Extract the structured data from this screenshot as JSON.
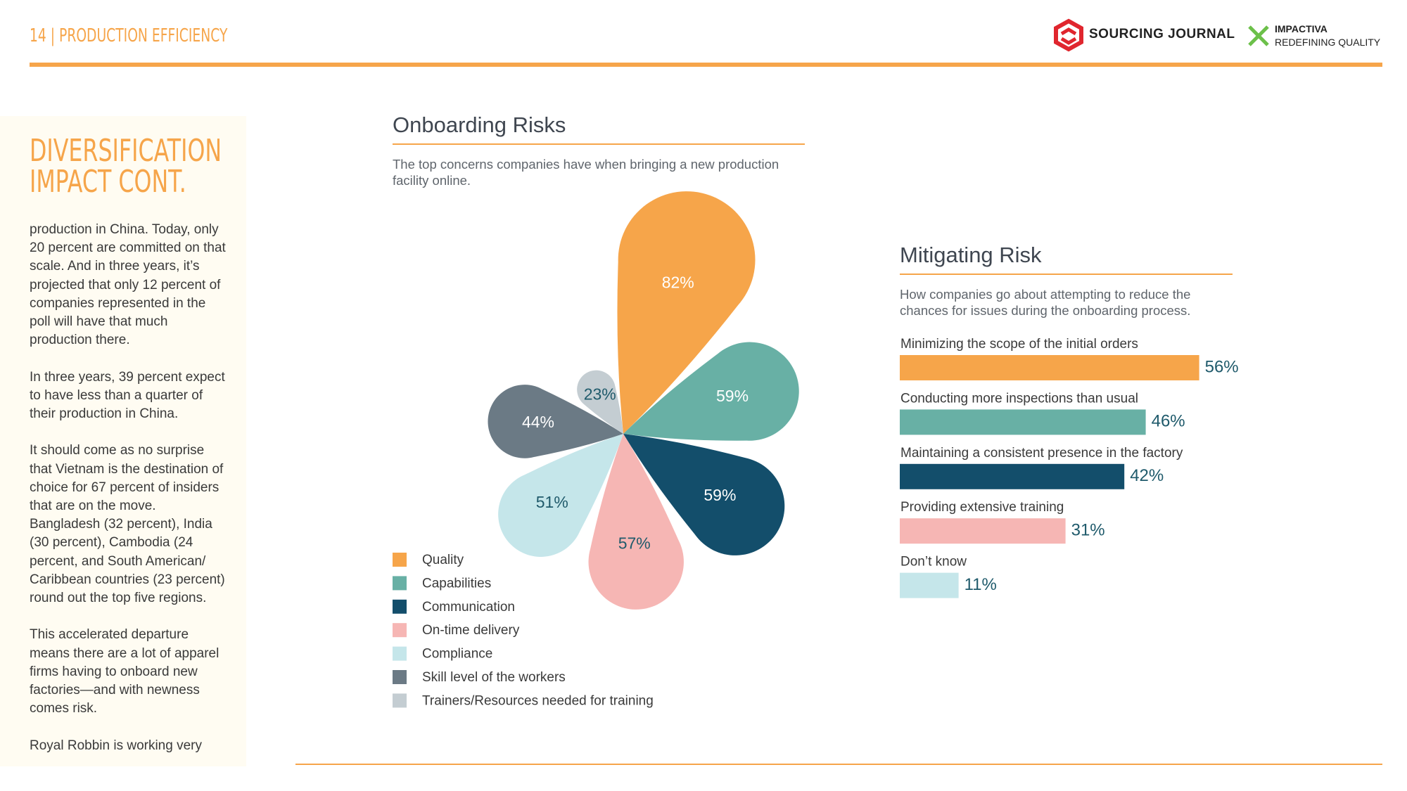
{
  "header": {
    "section": "14 | PRODUCTION EFFICIENCY",
    "brands": [
      "SOURCING JOURNAL",
      "IMPACTIVA",
      "REDEFINING QUALITY"
    ]
  },
  "sidebar": {
    "heading": [
      "DIVERSIFICATION",
      "IMPACT CONT."
    ],
    "paragraphs": [
      "production in China. Today, only 20 percent are committed on that scale. And in three years, it’s projected that only 12 percent of companies represented in the poll will have that much production there.",
      "In three years, 39 percent expect to have less than a quarter of their production in China.",
      "It should come as no surprise that Vietnam is the destination of choice for 67 percent of insiders that are on the move. Bangladesh (32 percent), India (30 percent), Cambodia (24 percent, and South American/ Caribbean countries (23 percent) round out the top five regions.",
      "This accelerated departure means there are a lot of apparel firms having to onboard new factories—and with newness comes risk.",
      "Royal Robbin is working very"
    ]
  },
  "chart_data": [
    {
      "type": "petal",
      "title": "Onboarding Risks",
      "subtitle": "The top concerns companies have when bringing a new production facility online.",
      "categories": [
        "Quality",
        "Capabilities",
        "Communication",
        "On-time delivery",
        "Compliance",
        "Skill level of the workers",
        "Trainers/Resources needed for training"
      ],
      "values": [
        82,
        59,
        59,
        57,
        51,
        44,
        23
      ],
      "value_labels": [
        "82%",
        "59%",
        "59%",
        "57%",
        "51%",
        "44%",
        "23%"
      ],
      "colors": [
        "#f6a54a",
        "#68b0a5",
        "#134e6b",
        "#f6b6b4",
        "#c5e6ea",
        "#6b7a85",
        "#c4cdd2"
      ]
    },
    {
      "type": "hbar",
      "title": "Mitigating Risk",
      "subtitle": "How companies go about attempting to reduce the chances for issues during the onboarding process.",
      "categories": [
        "Minimizing the scope of the initial orders",
        "Conducting more inspections than usual",
        "Maintaining a consistent presence in the factory",
        "Providing extensive training",
        "Don’t know"
      ],
      "values": [
        56,
        46,
        42,
        31,
        11
      ],
      "value_labels": [
        "56%",
        "46%",
        "42%",
        "31%",
        "11%"
      ],
      "colors": [
        "#f6a54a",
        "#68b0a5",
        "#134e6b",
        "#f6b6b4",
        "#c5e6ea"
      ]
    }
  ]
}
